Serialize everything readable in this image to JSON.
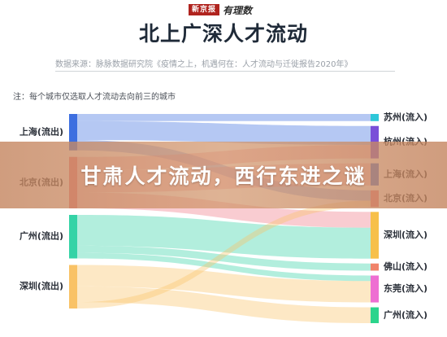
{
  "header": {
    "logo_box": "新京报",
    "logo_script": "有理数",
    "title": "北上广深人才流动",
    "source": "数据来源：脉脉数据研究院《疫情之上，机遇何在：人才流动与迁徙报告2020年》",
    "note": "注：每个城市仅选取人才流动去向前三的城市"
  },
  "banner": {
    "text": "甘肃人才流动，西行东进之谜"
  },
  "colors": {
    "上海": "#3d6fe0",
    "北京": "#f07a86",
    "广州": "#34d3a6",
    "深圳": "#f9c266",
    "苏州": "#2ec7d9",
    "杭州": "#7a4fd8",
    "深圳流入": "#f7c04a",
    "佛山": "#f0836a",
    "东莞": "#ee6fd2",
    "广州流入": "#2bd48c"
  },
  "chart_data": {
    "type": "sankey",
    "title": "北上广深人才流动",
    "sources": [
      {
        "key": "上海",
        "label": "上海(流出)"
      },
      {
        "key": "北京",
        "label": "北京(流出)"
      },
      {
        "key": "广州",
        "label": "广州(流出)"
      },
      {
        "key": "深圳",
        "label": "深圳(流出)"
      }
    ],
    "targets": [
      {
        "key": "苏州",
        "label": "苏州(流入)"
      },
      {
        "key": "杭州",
        "label": "杭州(流入)"
      },
      {
        "key": "上海",
        "label": "上海(流入)"
      },
      {
        "key": "北京",
        "label": "北京(流入)"
      },
      {
        "key": "深圳流入",
        "label": "深圳(流入)"
      },
      {
        "key": "佛山",
        "label": "佛山(流入)"
      },
      {
        "key": "东莞",
        "label": "东莞(流入)"
      },
      {
        "key": "广州流入",
        "label": "广州(流入)"
      }
    ],
    "links": [
      {
        "source": "上海",
        "target": "苏州",
        "value": 9
      },
      {
        "source": "上海",
        "target": "杭州",
        "value": 24
      },
      {
        "source": "上海",
        "target": "北京",
        "value": 13
      },
      {
        "source": "北京",
        "target": "杭州",
        "value": 17
      },
      {
        "source": "北京",
        "target": "上海",
        "value": 28
      },
      {
        "source": "北京",
        "target": "深圳流入",
        "value": 20
      },
      {
        "source": "广州",
        "target": "深圳流入",
        "value": 39
      },
      {
        "source": "广州",
        "target": "佛山",
        "value": 9
      },
      {
        "source": "广州",
        "target": "东莞",
        "value": 7
      },
      {
        "source": "深圳",
        "target": "东莞",
        "value": 27
      },
      {
        "source": "深圳",
        "target": "广州流入",
        "value": 20
      },
      {
        "source": "深圳",
        "target": "北京",
        "value": 8
      }
    ]
  }
}
